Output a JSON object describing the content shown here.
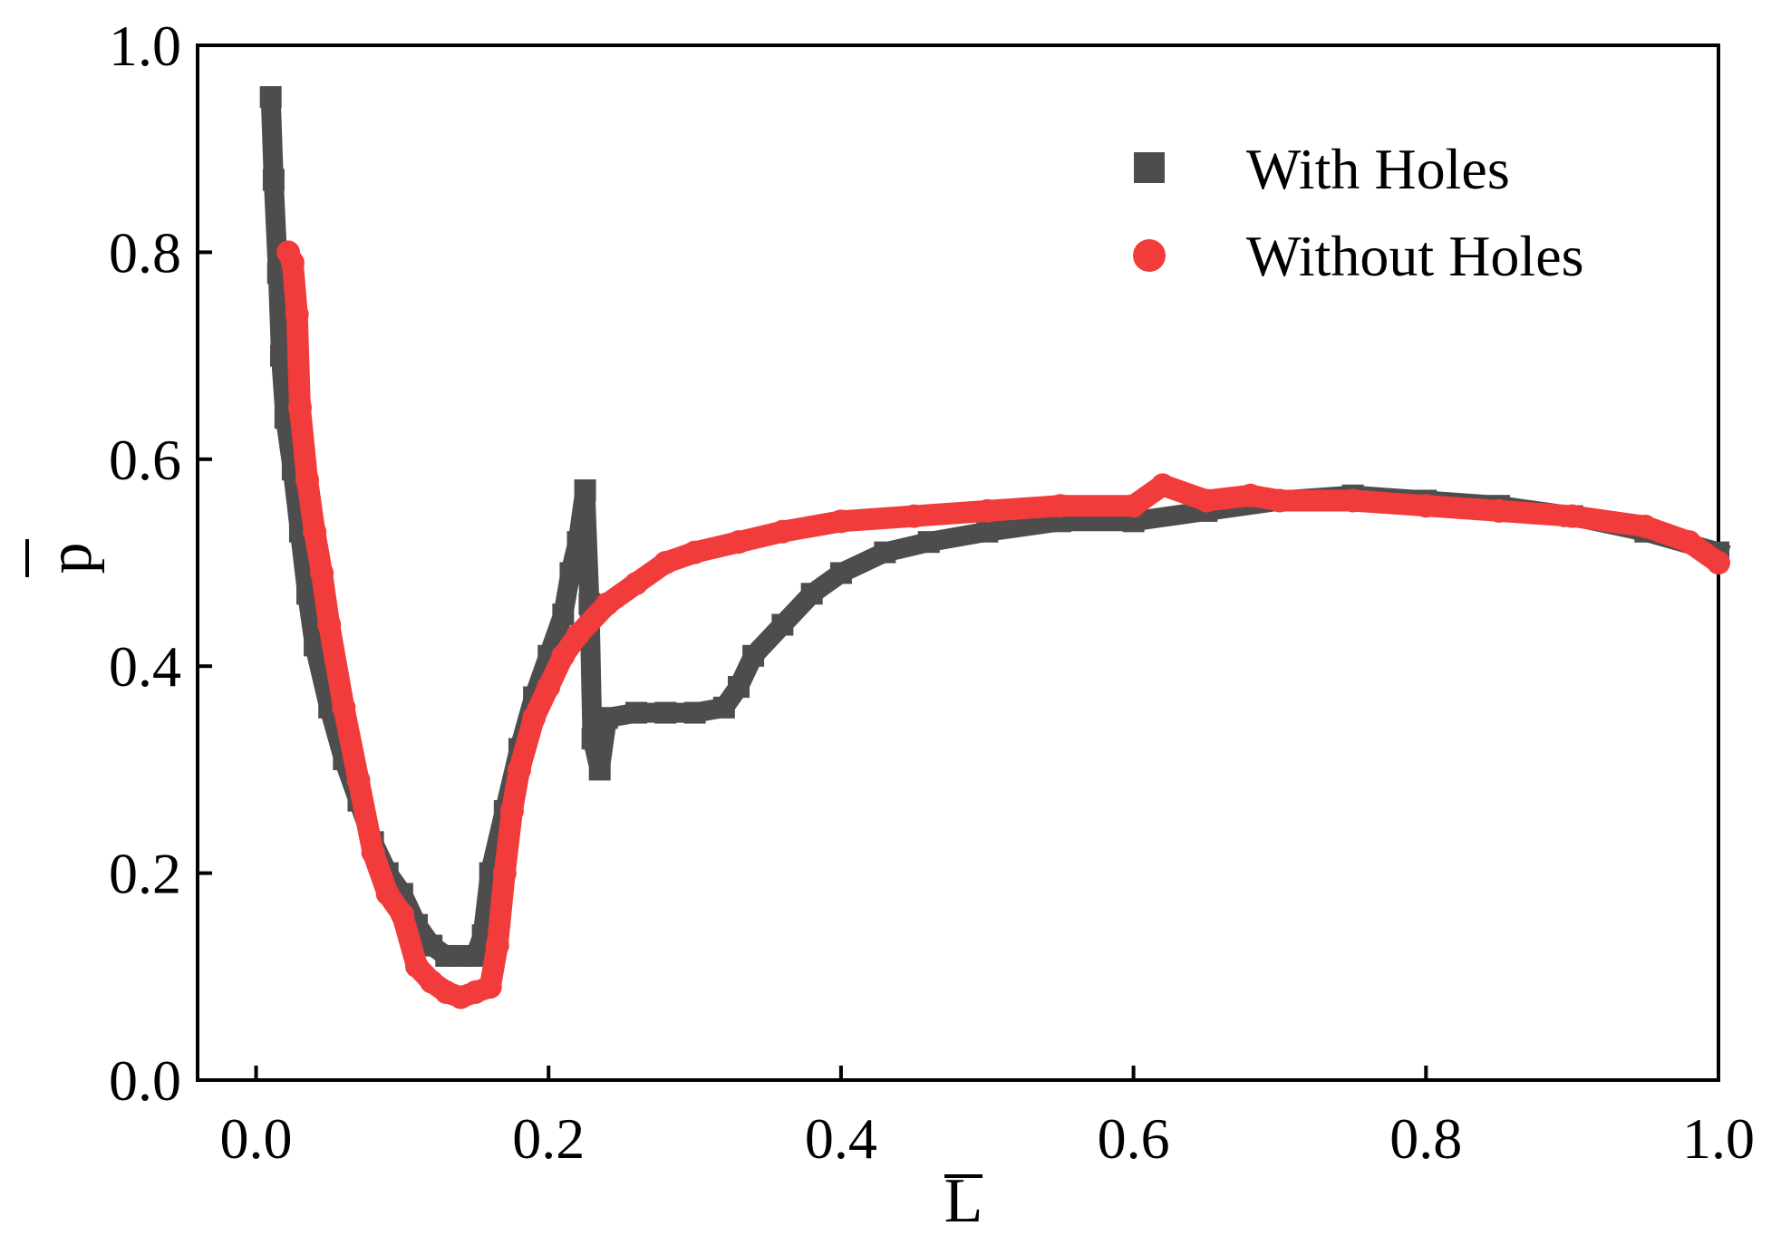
{
  "chart_data": {
    "type": "scatter",
    "title": "",
    "xlabel": "L",
    "ylabel": "p",
    "xlim": [
      -0.04,
      1.0
    ],
    "ylim": [
      0.0,
      1.0
    ],
    "x_ticks": [
      0.0,
      0.2,
      0.4,
      0.6,
      0.8,
      1.0
    ],
    "y_ticks": [
      0.0,
      0.2,
      0.4,
      0.6,
      0.8,
      1.0
    ],
    "x_tick_labels": [
      "0.0",
      "0.2",
      "0.4",
      "0.6",
      "0.8",
      "1.0"
    ],
    "y_tick_labels": [
      "0.0",
      "0.2",
      "0.4",
      "0.6",
      "0.8",
      "1.0"
    ],
    "grid": false,
    "legend_position": "top-right",
    "series": [
      {
        "name": "With Holes",
        "marker": "square",
        "color": "#4d4d4d",
        "x": [
          0.01,
          0.012,
          0.015,
          0.017,
          0.02,
          0.025,
          0.03,
          0.035,
          0.04,
          0.05,
          0.06,
          0.07,
          0.08,
          0.09,
          0.1,
          0.11,
          0.12,
          0.13,
          0.14,
          0.15,
          0.155,
          0.16,
          0.17,
          0.18,
          0.19,
          0.2,
          0.21,
          0.215,
          0.22,
          0.225,
          0.228,
          0.23,
          0.235,
          0.24,
          0.26,
          0.28,
          0.3,
          0.32,
          0.33,
          0.34,
          0.36,
          0.38,
          0.4,
          0.43,
          0.46,
          0.5,
          0.55,
          0.6,
          0.65,
          0.7,
          0.75,
          0.8,
          0.85,
          0.9,
          0.95,
          1.0
        ],
        "y": [
          0.95,
          0.87,
          0.78,
          0.7,
          0.64,
          0.59,
          0.53,
          0.47,
          0.42,
          0.36,
          0.31,
          0.27,
          0.23,
          0.2,
          0.18,
          0.15,
          0.13,
          0.12,
          0.12,
          0.12,
          0.14,
          0.2,
          0.26,
          0.32,
          0.37,
          0.41,
          0.45,
          0.49,
          0.52,
          0.57,
          0.46,
          0.33,
          0.3,
          0.35,
          0.355,
          0.355,
          0.355,
          0.36,
          0.38,
          0.41,
          0.44,
          0.47,
          0.49,
          0.51,
          0.52,
          0.53,
          0.54,
          0.54,
          0.55,
          0.56,
          0.565,
          0.56,
          0.555,
          0.545,
          0.53,
          0.51
        ]
      },
      {
        "name": "Without Holes",
        "marker": "circle",
        "color": "#f23b3b",
        "x": [
          0.022,
          0.025,
          0.028,
          0.03,
          0.035,
          0.04,
          0.045,
          0.05,
          0.06,
          0.07,
          0.08,
          0.09,
          0.1,
          0.11,
          0.12,
          0.13,
          0.14,
          0.15,
          0.16,
          0.165,
          0.17,
          0.175,
          0.18,
          0.19,
          0.2,
          0.21,
          0.22,
          0.24,
          0.26,
          0.28,
          0.3,
          0.33,
          0.36,
          0.4,
          0.45,
          0.5,
          0.55,
          0.6,
          0.62,
          0.65,
          0.68,
          0.7,
          0.75,
          0.8,
          0.85,
          0.9,
          0.95,
          0.98,
          1.0
        ],
        "y": [
          0.8,
          0.79,
          0.74,
          0.65,
          0.58,
          0.53,
          0.49,
          0.44,
          0.36,
          0.29,
          0.22,
          0.18,
          0.16,
          0.11,
          0.095,
          0.085,
          0.08,
          0.085,
          0.09,
          0.13,
          0.2,
          0.26,
          0.3,
          0.35,
          0.38,
          0.41,
          0.43,
          0.46,
          0.48,
          0.5,
          0.51,
          0.52,
          0.53,
          0.54,
          0.545,
          0.55,
          0.555,
          0.555,
          0.575,
          0.56,
          0.565,
          0.56,
          0.56,
          0.555,
          0.55,
          0.545,
          0.535,
          0.52,
          0.5
        ]
      }
    ]
  }
}
